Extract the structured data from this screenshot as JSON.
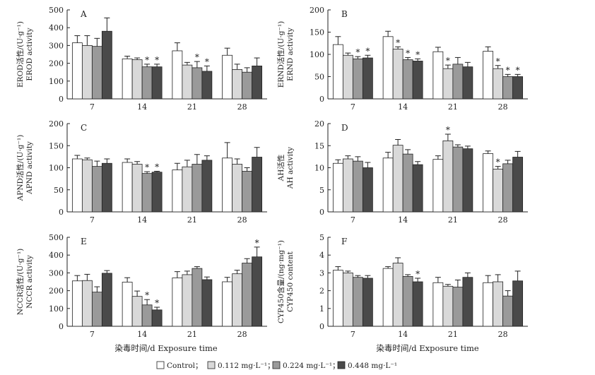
{
  "chart_data": [
    {
      "type": "bar",
      "panel": "A",
      "ylabel_cn": "EROD活性/(U·g⁻¹)",
      "ylabel_en": "EROD activity",
      "ylim": [
        0,
        500
      ],
      "yticks": [
        0,
        100,
        200,
        300,
        400,
        500
      ],
      "categories": [
        "7",
        "14",
        "21",
        "28"
      ],
      "series": [
        {
          "name": "Control",
          "values": [
            315,
            225,
            270,
            245
          ],
          "errors": [
            40,
            15,
            45,
            40
          ],
          "stars": [
            false,
            false,
            false,
            false
          ]
        },
        {
          "name": "0.112 mg·L⁻¹",
          "values": [
            300,
            220,
            190,
            165
          ],
          "errors": [
            55,
            10,
            15,
            30
          ],
          "stars": [
            false,
            false,
            false,
            false
          ]
        },
        {
          "name": "0.224 mg·L⁻¹",
          "values": [
            295,
            180,
            175,
            150
          ],
          "errors": [
            45,
            15,
            35,
            25
          ],
          "stars": [
            false,
            true,
            true,
            false
          ]
        },
        {
          "name": "0.448 mg·L⁻¹",
          "values": [
            380,
            180,
            155,
            185
          ],
          "errors": [
            75,
            15,
            30,
            45
          ],
          "stars": [
            false,
            true,
            true,
            false
          ]
        }
      ]
    },
    {
      "type": "bar",
      "panel": "B",
      "ylabel_cn": "ERND活性/(U·g⁻¹)",
      "ylabel_en": "ERND activity",
      "ylim": [
        0,
        200
      ],
      "yticks": [
        0,
        50,
        100,
        150,
        200
      ],
      "categories": [
        "7",
        "14",
        "21",
        "28"
      ],
      "series": [
        {
          "name": "Control",
          "values": [
            122,
            140,
            106,
            107
          ],
          "errors": [
            18,
            12,
            10,
            10
          ],
          "stars": [
            false,
            false,
            false,
            false
          ]
        },
        {
          "name": "0.112 mg·L⁻¹",
          "values": [
            98,
            112,
            68,
            68
          ],
          "errors": [
            5,
            5,
            8,
            7
          ],
          "stars": [
            false,
            true,
            true,
            true
          ]
        },
        {
          "name": "0.224 mg·L⁻¹",
          "values": [
            90,
            88,
            78,
            50
          ],
          "errors": [
            5,
            5,
            15,
            5
          ],
          "stars": [
            true,
            true,
            false,
            true
          ]
        },
        {
          "name": "0.448 mg·L⁻¹",
          "values": [
            92,
            85,
            72,
            50
          ],
          "errors": [
            6,
            5,
            10,
            5
          ],
          "stars": [
            true,
            true,
            false,
            true
          ]
        }
      ]
    },
    {
      "type": "bar",
      "panel": "C",
      "ylabel_cn": "APND活性/(U·g⁻¹)",
      "ylabel_en": "APND activity",
      "ylim": [
        0,
        200
      ],
      "yticks": [
        0,
        50,
        100,
        150,
        200
      ],
      "categories": [
        "7",
        "14",
        "21",
        "28"
      ],
      "series": [
        {
          "name": "Control",
          "values": [
            120,
            112,
            95,
            122
          ],
          "errors": [
            8,
            8,
            15,
            35
          ],
          "stars": [
            false,
            false,
            false,
            false
          ]
        },
        {
          "name": "0.112 mg·L⁻¹",
          "values": [
            118,
            108,
            102,
            108
          ],
          "errors": [
            4,
            6,
            15,
            12
          ],
          "stars": [
            false,
            false,
            false,
            false
          ]
        },
        {
          "name": "0.224 mg·L⁻¹",
          "values": [
            103,
            87,
            108,
            92
          ],
          "errors": [
            12,
            4,
            22,
            8
          ],
          "stars": [
            false,
            true,
            false,
            false
          ]
        },
        {
          "name": "0.448 mg·L⁻¹",
          "values": [
            110,
            90,
            117,
            124
          ],
          "errors": [
            10,
            2,
            10,
            22
          ],
          "stars": [
            false,
            true,
            false,
            false
          ]
        }
      ]
    },
    {
      "type": "bar",
      "panel": "D",
      "ylabel_cn": "AH活性",
      "ylabel_en": "AH activity",
      "ylim": [
        0,
        20
      ],
      "yticks": [
        0,
        5,
        10,
        15,
        20
      ],
      "categories": [
        "7",
        "14",
        "21",
        "28"
      ],
      "series": [
        {
          "name": "Control",
          "values": [
            11,
            12.2,
            11.9,
            13.2
          ],
          "errors": [
            0.8,
            1.3,
            0.8,
            0.6
          ],
          "stars": [
            false,
            false,
            false,
            false
          ]
        },
        {
          "name": "0.112 mg·L⁻¹",
          "values": [
            12,
            15.1,
            16.1,
            9.7
          ],
          "errors": [
            0.7,
            1.3,
            1.5,
            0.6
          ],
          "stars": [
            false,
            false,
            true,
            true
          ]
        },
        {
          "name": "0.224 mg·L⁻¹",
          "values": [
            11.5,
            13.1,
            14.7,
            10.9
          ],
          "errors": [
            1.0,
            1.0,
            0.5,
            0.8
          ],
          "stars": [
            false,
            false,
            false,
            false
          ]
        },
        {
          "name": "0.448 mg·L⁻¹",
          "values": [
            10,
            10.7,
            14.3,
            12.4
          ],
          "errors": [
            1.2,
            0.7,
            0.6,
            1.3
          ],
          "stars": [
            false,
            false,
            false,
            false
          ]
        }
      ]
    },
    {
      "type": "bar",
      "panel": "E",
      "ylabel_cn": "NCCR活性/(U·g⁻¹)",
      "ylabel_en": "NCCR activity",
      "ylim": [
        0,
        500
      ],
      "yticks": [
        0,
        100,
        200,
        300,
        400,
        500
      ],
      "categories": [
        "7",
        "14",
        "21",
        "28"
      ],
      "series": [
        {
          "name": "Control",
          "values": [
            255,
            248,
            272,
            250
          ],
          "errors": [
            30,
            25,
            35,
            25
          ],
          "stars": [
            false,
            false,
            false,
            false
          ]
        },
        {
          "name": "0.112 mg·L⁻¹",
          "values": [
            257,
            168,
            290,
            295
          ],
          "errors": [
            35,
            30,
            20,
            20
          ],
          "stars": [
            false,
            false,
            false,
            false
          ]
        },
        {
          "name": "0.224 mg·L⁻¹",
          "values": [
            192,
            120,
            325,
            355
          ],
          "errors": [
            30,
            30,
            10,
            25
          ],
          "stars": [
            false,
            true,
            false,
            false
          ]
        },
        {
          "name": "0.448 mg·L⁻¹",
          "values": [
            298,
            92,
            262,
            390
          ],
          "errors": [
            15,
            15,
            15,
            55
          ],
          "stars": [
            false,
            true,
            false,
            true
          ]
        }
      ]
    },
    {
      "type": "bar",
      "panel": "F",
      "ylabel_cn": "CYP450含量/(ng·mg⁻¹)",
      "ylabel_en": "CYP450 content",
      "ylim": [
        0,
        5
      ],
      "yticks": [
        0,
        1,
        2,
        3,
        4,
        5
      ],
      "categories": [
        "7",
        "14",
        "21",
        "28"
      ],
      "series": [
        {
          "name": "Control",
          "values": [
            3.15,
            3.25,
            2.45,
            2.45
          ],
          "errors": [
            0.2,
            0.1,
            0.3,
            0.4
          ],
          "stars": [
            false,
            false,
            false,
            false
          ]
        },
        {
          "name": "0.112 mg·L⁻¹",
          "values": [
            3.0,
            3.55,
            2.25,
            2.5
          ],
          "errors": [
            0.1,
            0.3,
            0.1,
            0.4
          ],
          "stars": [
            false,
            false,
            false,
            false
          ]
        },
        {
          "name": "0.224 mg·L⁻¹",
          "values": [
            2.75,
            2.8,
            2.2,
            1.7
          ],
          "errors": [
            0.1,
            0.1,
            0.4,
            0.3
          ],
          "stars": [
            false,
            false,
            false,
            false
          ]
        },
        {
          "name": "0.448 mg·L⁻¹",
          "values": [
            2.7,
            2.5,
            2.75,
            2.55
          ],
          "errors": [
            0.15,
            0.2,
            0.25,
            0.55
          ],
          "stars": [
            false,
            true,
            false,
            false
          ]
        }
      ]
    }
  ],
  "xlabel_left": "染毒时间/d   Exposure time",
  "xlabel_right": "染毒时间/d   Exposure time",
  "legend": [
    {
      "label": "Control；",
      "color": "#ffffff"
    },
    {
      "label": "0.112 mg·L⁻¹；",
      "color": "#d9d9d9"
    },
    {
      "label": "0.224 mg·L⁻¹；",
      "color": "#9a9a9a"
    },
    {
      "label": "0.448 mg·L⁻¹",
      "color": "#4a4a4a"
    }
  ],
  "colors": {
    "bars": [
      "#ffffff",
      "#d9d9d9",
      "#9a9a9a",
      "#4a4a4a"
    ],
    "axis": "#222222"
  }
}
